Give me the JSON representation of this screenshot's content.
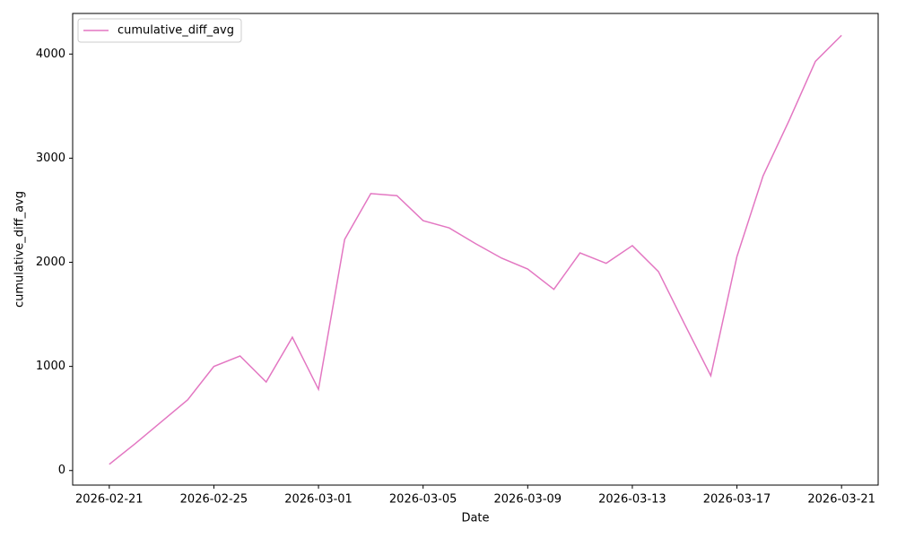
{
  "chart_data": {
    "type": "line",
    "x_label": "Date",
    "y_label": "cumulative_diff_avg",
    "x": [
      "2026-02-21",
      "2026-02-22",
      "2026-02-23",
      "2026-02-24",
      "2026-02-25",
      "2026-02-26",
      "2026-02-27",
      "2026-02-28",
      "2026-03-01",
      "2026-03-02",
      "2026-03-03",
      "2026-03-04",
      "2026-03-05",
      "2026-03-06",
      "2026-03-07",
      "2026-03-08",
      "2026-03-09",
      "2026-03-10",
      "2026-03-11",
      "2026-03-12",
      "2026-03-13",
      "2026-03-14",
      "2026-03-15",
      "2026-03-16",
      "2026-03-17",
      "2026-03-18",
      "2026-03-19",
      "2026-03-20",
      "2026-03-21"
    ],
    "series": [
      {
        "name": "cumulative_diff_avg",
        "color": "#e377c2",
        "values": [
          60,
          260,
          470,
          680,
          1000,
          1100,
          850,
          1280,
          780,
          2220,
          2660,
          2640,
          2400,
          2330,
          2180,
          2040,
          1935,
          1740,
          2090,
          1990,
          2160,
          1910,
          1405,
          910,
          2055,
          2830,
          3365,
          3930,
          4180
        ]
      }
    ],
    "xlim": [
      "2026-02-21",
      "2026-03-21"
    ],
    "xticks": [
      "2026-02-21",
      "2026-02-25",
      "2026-03-01",
      "2026-03-05",
      "2026-03-09",
      "2026-03-13",
      "2026-03-17",
      "2026-03-21"
    ],
    "ylim": [
      -140,
      4390
    ],
    "yticks": [
      0,
      1000,
      2000,
      3000,
      4000
    ],
    "legend": "upper left",
    "grid": false
  }
}
